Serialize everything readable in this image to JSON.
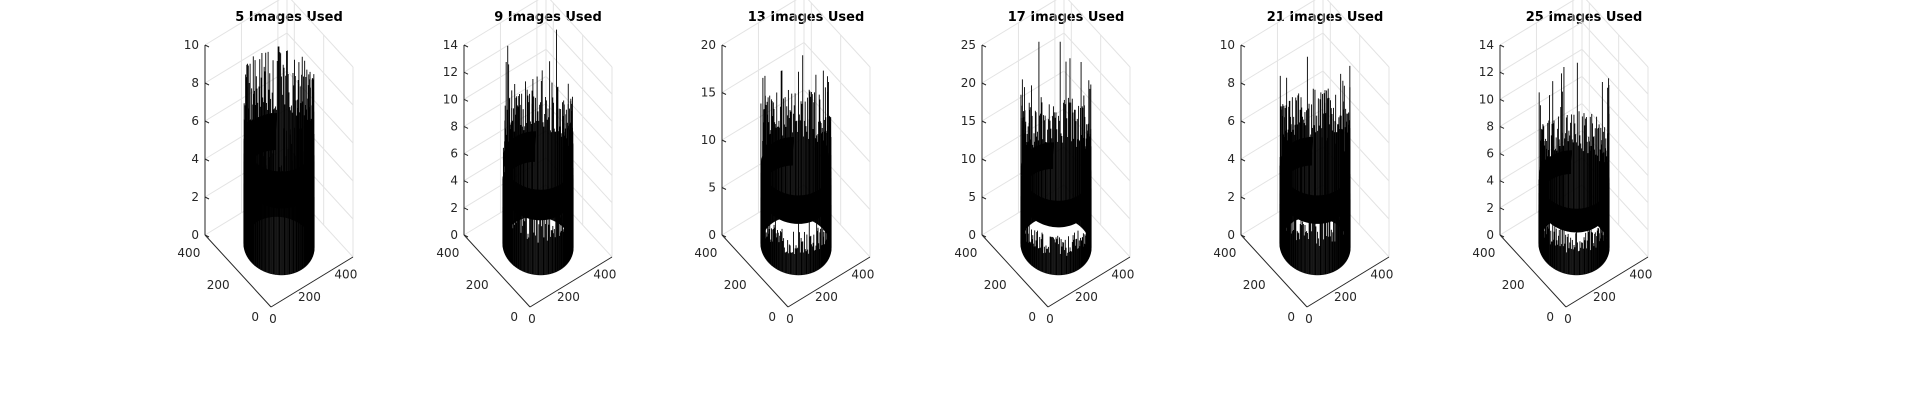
{
  "chart_data": [
    {
      "type": "bar3",
      "title": "5 Images Used",
      "zticks": [
        "0",
        "2",
        "4",
        "6",
        "8",
        "10"
      ],
      "zmax": 10,
      "xticks": [
        "0",
        "200",
        "400"
      ],
      "yticks": [
        "0",
        "200",
        "400"
      ],
      "front_level": 6.0,
      "back_level": 7.8,
      "spike_max": 9.2,
      "right_tail_level": 2.2,
      "left_tail_level": 1.4,
      "left_arc_level": 0.4
    },
    {
      "type": "bar3",
      "title": "9 Images Used",
      "zticks": [
        "0",
        "2",
        "4",
        "6",
        "8",
        "10",
        "12",
        "14"
      ],
      "zmax": 14,
      "xticks": [
        "0",
        "200",
        "400"
      ],
      "yticks": [
        "0",
        "200",
        "400"
      ],
      "front_level": 4.0,
      "back_level": 9.0,
      "spike_max": 14.3,
      "right_tail_level": 3.0,
      "left_tail_level": 2.5,
      "left_arc_level": 0.6
    },
    {
      "type": "bar3",
      "title": "13 Images Used",
      "zticks": [
        "0",
        "5",
        "10",
        "15",
        "20"
      ],
      "zmax": 20,
      "xticks": [
        "0",
        "200",
        "400"
      ],
      "yticks": [
        "0",
        "200",
        "400"
      ],
      "front_level": 3.5,
      "back_level": 12.0,
      "spike_max": 19.8,
      "right_tail_level": 2.5,
      "left_tail_level": 2.0,
      "left_arc_level": 0.8
    },
    {
      "type": "bar3",
      "title": "17 Images Used",
      "zticks": [
        "0",
        "5",
        "10",
        "15",
        "20",
        "25"
      ],
      "zmax": 25,
      "xticks": [
        "0",
        "200",
        "400"
      ],
      "yticks": [
        "0",
        "200",
        "400"
      ],
      "front_level": 4.0,
      "back_level": 14.0,
      "spike_max": 24.0,
      "right_tail_level": 3.0,
      "left_tail_level": 2.5,
      "left_arc_level": 1.0
    },
    {
      "type": "bar3",
      "title": "21 Images Used",
      "zticks": [
        "0",
        "2",
        "4",
        "6",
        "8",
        "10"
      ],
      "zmax": 10,
      "xticks": [
        "0",
        "200",
        "400"
      ],
      "yticks": [
        "0",
        "200",
        "400"
      ],
      "front_level": 2.5,
      "back_level": 6.0,
      "spike_max": 9.8,
      "right_tail_level": 1.6,
      "left_tail_level": 1.6,
      "left_arc_level": 0.3
    },
    {
      "type": "bar3",
      "title": "25 Images Used",
      "zticks": [
        "0",
        "2",
        "4",
        "6",
        "8",
        "10",
        "12",
        "14"
      ],
      "zmax": 14,
      "xticks": [
        "0",
        "200",
        "400"
      ],
      "yticks": [
        "0",
        "200",
        "400"
      ],
      "front_level": 2.5,
      "back_level": 7.0,
      "spike_max": 14.3,
      "right_tail_level": 2.5,
      "left_tail_level": 1.5,
      "left_arc_level": 0.3
    }
  ]
}
